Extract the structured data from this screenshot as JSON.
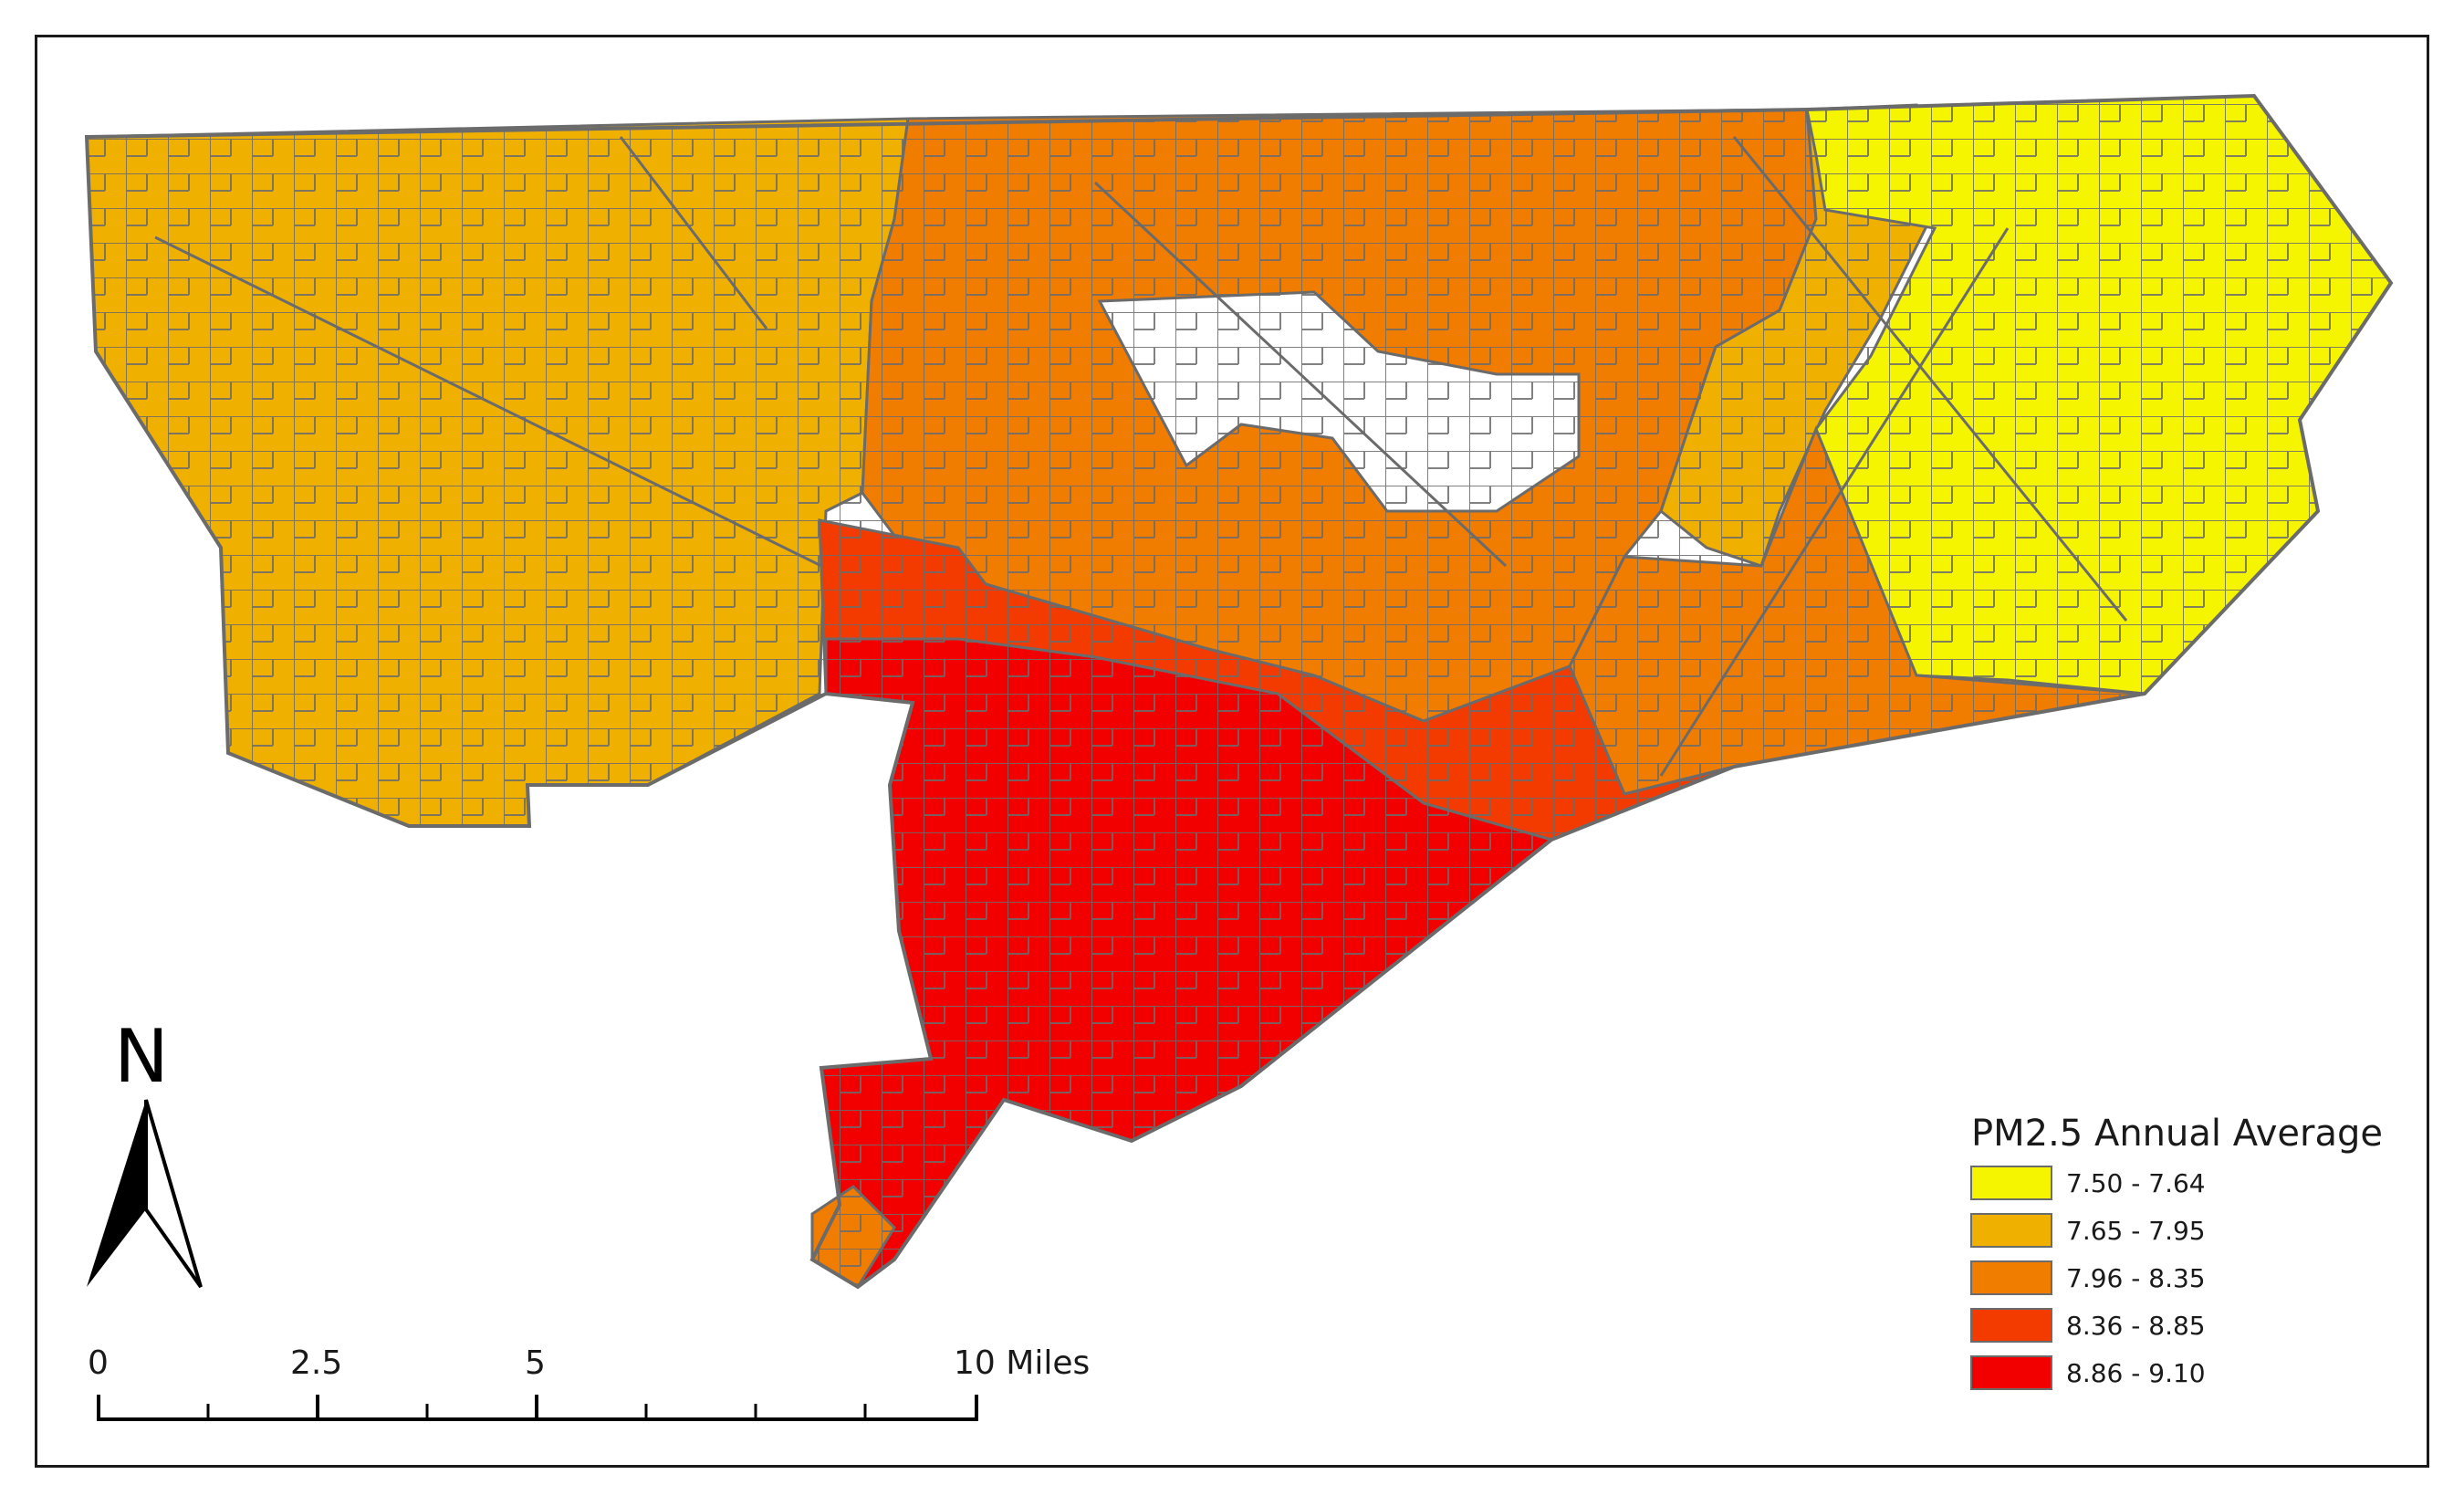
{
  "legend": {
    "title": "PM2.5 Annual Average",
    "classes": [
      {
        "label": "7.50 - 7.64",
        "color": "#f5f500"
      },
      {
        "label": "7.65 - 7.95",
        "color": "#f0b000"
      },
      {
        "label": "7.96 - 8.35",
        "color": "#f07c00"
      },
      {
        "label": "8.36 - 8.85",
        "color": "#f33b00"
      },
      {
        "label": "8.86 - 9.10",
        "color": "#f20000"
      }
    ]
  },
  "scale_bar": {
    "labels": [
      "0",
      "2.5",
      "5",
      "10 Miles"
    ]
  },
  "north_arrow": {
    "label": "N"
  },
  "map": {
    "boundary_color": "#6b6b6b"
  }
}
